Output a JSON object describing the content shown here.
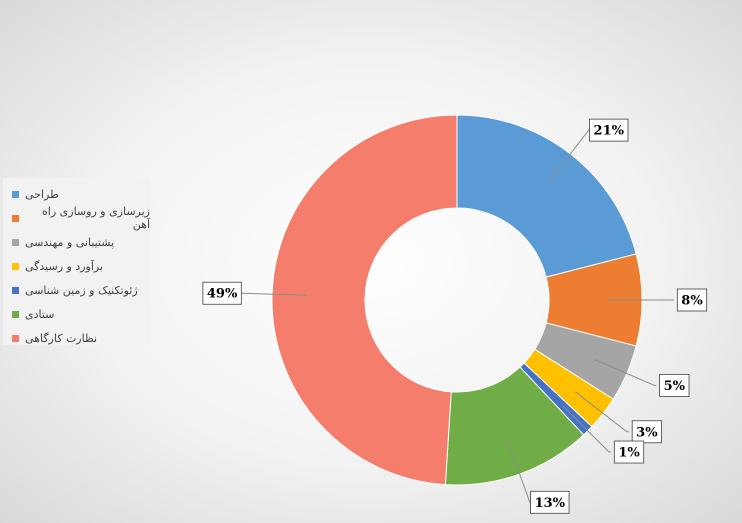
{
  "chart_data": {
    "type": "donut",
    "categories": [
      "طراحی",
      "زیرسازی و روسازی راه آهن",
      "پشتیبانی و مهندسی",
      "برآورد و رسیدگی",
      "ژئوتکنیک و زمین شناسی",
      "ستادی",
      "نظارت کارگاهی"
    ],
    "values": [
      21,
      8,
      5,
      3,
      1,
      13,
      49
    ],
    "value_labels": [
      "21%",
      "8%",
      "5%",
      "3%",
      "1%",
      "13%",
      "49%"
    ],
    "colors": [
      "#5b9bd5",
      "#ed7d31",
      "#a5a5a5",
      "#ffc000",
      "#4472c4",
      "#70ad47",
      "#f47e6b"
    ],
    "legend": "left"
  }
}
